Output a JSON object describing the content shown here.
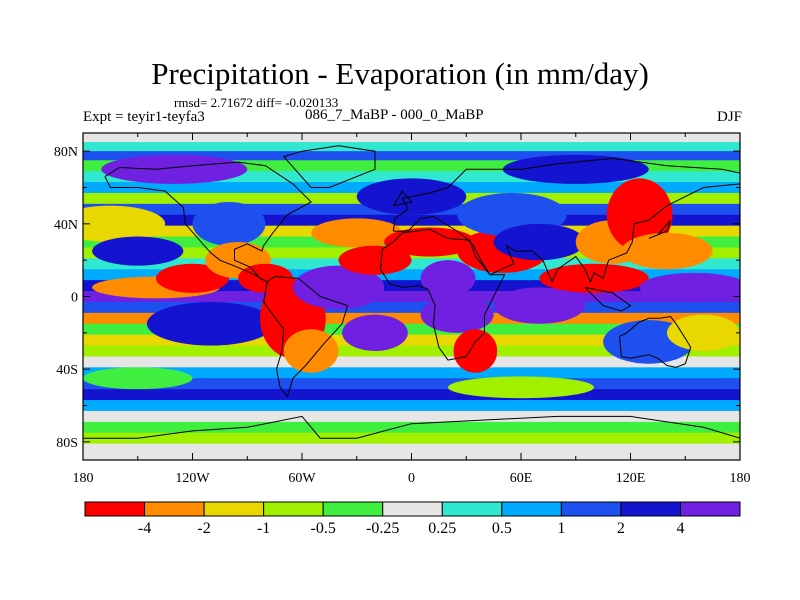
{
  "title": "Precipitation - Evaporation (in mm/day)",
  "stats": "rmsd= 2.71672 diff= -0.020133",
  "experiment": "Expt = teyir1-teyfa3",
  "period": "086_7_MaBP - 000_0_MaBP",
  "season": "DJF",
  "map": {
    "lat_range": [
      -90,
      90
    ],
    "lon_range": [
      -180,
      180
    ],
    "lat_ticks": [
      "80N",
      "40N",
      "0",
      "40S",
      "80S"
    ],
    "lon_ticks": [
      "180",
      "120W",
      "60W",
      "0",
      "60E",
      "120E",
      "180"
    ]
  },
  "colorbar": {
    "colors": [
      "#ff0000",
      "#ff8c00",
      "#e8d800",
      "#a0f000",
      "#40ee40",
      "#e6e6e6",
      "#30e8d0",
      "#00aaff",
      "#1e50f0",
      "#1414d0",
      "#7020e0"
    ],
    "labels": [
      "-4",
      "-2",
      "-1",
      "-0.5",
      "-0.25",
      "0.25",
      "0.5",
      "1",
      "2",
      "4"
    ]
  }
}
